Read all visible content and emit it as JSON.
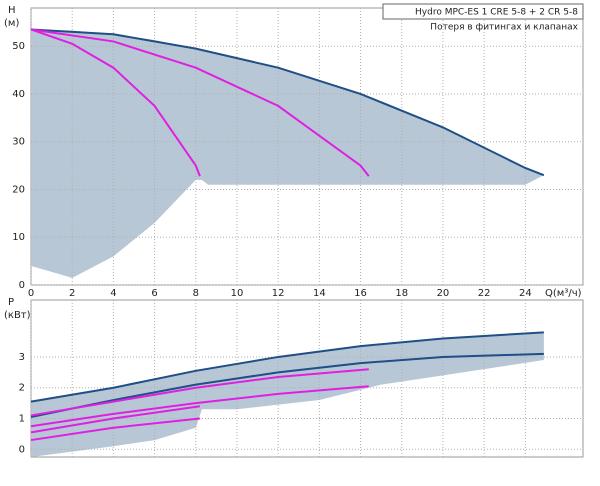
{
  "chart_data": [
    {
      "type": "line",
      "title": "Hydro MPC-ES 1 CRE 5-8  +  2 CR 5-8",
      "subtitle": "Потеря в фитингах и клапанах",
      "y_label": "H",
      "y_unit": "(м)",
      "x_label": "Q(м³/ч)",
      "xlim": [
        0,
        26.8
      ],
      "xticks": [
        0,
        2,
        4,
        6,
        8,
        10,
        12,
        14,
        16,
        18,
        20,
        22,
        24
      ],
      "ylim": [
        0,
        58
      ],
      "yticks": [
        0,
        10,
        20,
        30,
        40,
        50
      ],
      "grid": true,
      "area": {
        "color": "#b7c7d6",
        "x": [
          0,
          2,
          4,
          6,
          8,
          8.3,
          8.6,
          12,
          16,
          16.6,
          17,
          20,
          24,
          24.9
        ],
        "upper": [
          53.5,
          53.3,
          52.5,
          51.3,
          49.5,
          49.2,
          49,
          45.5,
          40,
          39.2,
          38.5,
          33,
          24.5,
          23
        ],
        "lower": [
          4,
          1.5,
          6,
          13,
          22,
          22,
          21,
          21,
          21,
          21,
          21,
          21,
          21,
          23
        ]
      },
      "series": [
        {
          "color": "#1f4f86",
          "x": [
            0,
            4,
            8,
            12,
            16,
            20,
            24,
            24.9
          ],
          "values": [
            53.5,
            52.5,
            49.5,
            45.5,
            40,
            33,
            24.5,
            23
          ]
        },
        {
          "color": "#e020e0",
          "x": [
            0,
            2,
            4,
            6,
            8,
            8.2
          ],
          "values": [
            53.5,
            50.5,
            45.5,
            37.5,
            25,
            22.8
          ]
        },
        {
          "color": "#e020e0",
          "x": [
            0,
            4,
            8,
            12,
            16,
            16.4
          ],
          "values": [
            53.5,
            51,
            45.5,
            37.5,
            25,
            22.8
          ]
        }
      ]
    },
    {
      "type": "line",
      "y_label": "P",
      "y_unit": "(кВт)",
      "xlim": [
        0,
        26.8
      ],
      "xticks": [
        0,
        2,
        4,
        6,
        8,
        10,
        12,
        14,
        16,
        18,
        20,
        22,
        24
      ],
      "ylim": [
        -0.25,
        4.85
      ],
      "yticks": [
        0,
        1,
        2,
        3
      ],
      "grid": true,
      "area": {
        "color": "#b7c7d6",
        "x": [
          0,
          4,
          6,
          8,
          8.3,
          10,
          14,
          16.4,
          17,
          20,
          24.9
        ],
        "upper": [
          1.55,
          2.0,
          2.28,
          2.55,
          2.58,
          2.78,
          3.18,
          3.38,
          3.42,
          3.6,
          3.8
        ],
        "lower": [
          -0.25,
          0.1,
          0.3,
          0.7,
          1.3,
          1.3,
          1.6,
          2.0,
          2.1,
          2.4,
          2.9
        ]
      },
      "series": [
        {
          "color": "#1f4f86",
          "x": [
            0,
            4,
            8,
            12,
            16,
            20,
            24.9
          ],
          "values": [
            1.55,
            2.0,
            2.55,
            3.0,
            3.35,
            3.6,
            3.8
          ]
        },
        {
          "color": "#1f4f86",
          "x": [
            0,
            4,
            8,
            12,
            16,
            20,
            24.9
          ],
          "values": [
            1.05,
            1.6,
            2.1,
            2.5,
            2.8,
            3.0,
            3.1
          ]
        },
        {
          "color": "#e020e0",
          "x": [
            0,
            4,
            8,
            12,
            16.4
          ],
          "values": [
            1.1,
            1.55,
            2.0,
            2.35,
            2.6
          ]
        },
        {
          "color": "#e020e0",
          "x": [
            0,
            4,
            8,
            12,
            16.4
          ],
          "values": [
            0.75,
            1.15,
            1.5,
            1.8,
            2.05
          ]
        },
        {
          "color": "#e020e0",
          "x": [
            0,
            4,
            8.2
          ],
          "values": [
            0.55,
            1.0,
            1.4
          ]
        },
        {
          "color": "#e020e0",
          "x": [
            0,
            4,
            8.2
          ],
          "values": [
            0.3,
            0.7,
            1.0
          ]
        }
      ]
    }
  ]
}
